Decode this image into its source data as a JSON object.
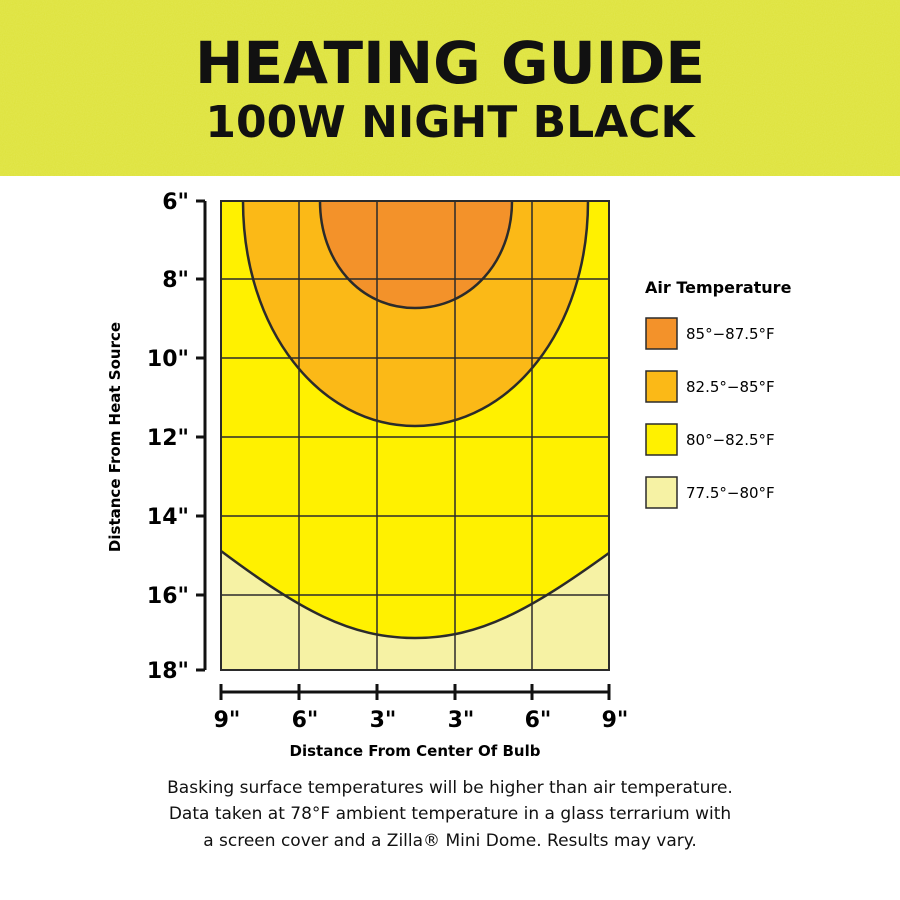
{
  "header": {
    "title": "HEATING GUIDE",
    "subtitle": "100W NIGHT BLACK"
  },
  "y_axis": {
    "title": "Distance From Heat Source",
    "ticks": [
      "6\"",
      "8\"",
      "10\"",
      "12\"",
      "14\"",
      "16\"",
      "18\""
    ]
  },
  "x_axis": {
    "title": "Distance From Center Of Bulb",
    "ticks": [
      "9\"",
      "6\"",
      "3\"",
      "3\"",
      "6\"",
      "9\""
    ]
  },
  "legend": {
    "title": "Air Temperature",
    "items": [
      "85°−87.5°F",
      "82.5°−85°F",
      "80°−82.5°F",
      "77.5°−80°F"
    ]
  },
  "footnote": [
    "Basking surface temperatures will be higher than air temperature.",
    "Data taken at 78°F ambient temperature in a glass terrarium with",
    "a screen cover and a Zilla® Mini Dome. Results may vary."
  ]
}
